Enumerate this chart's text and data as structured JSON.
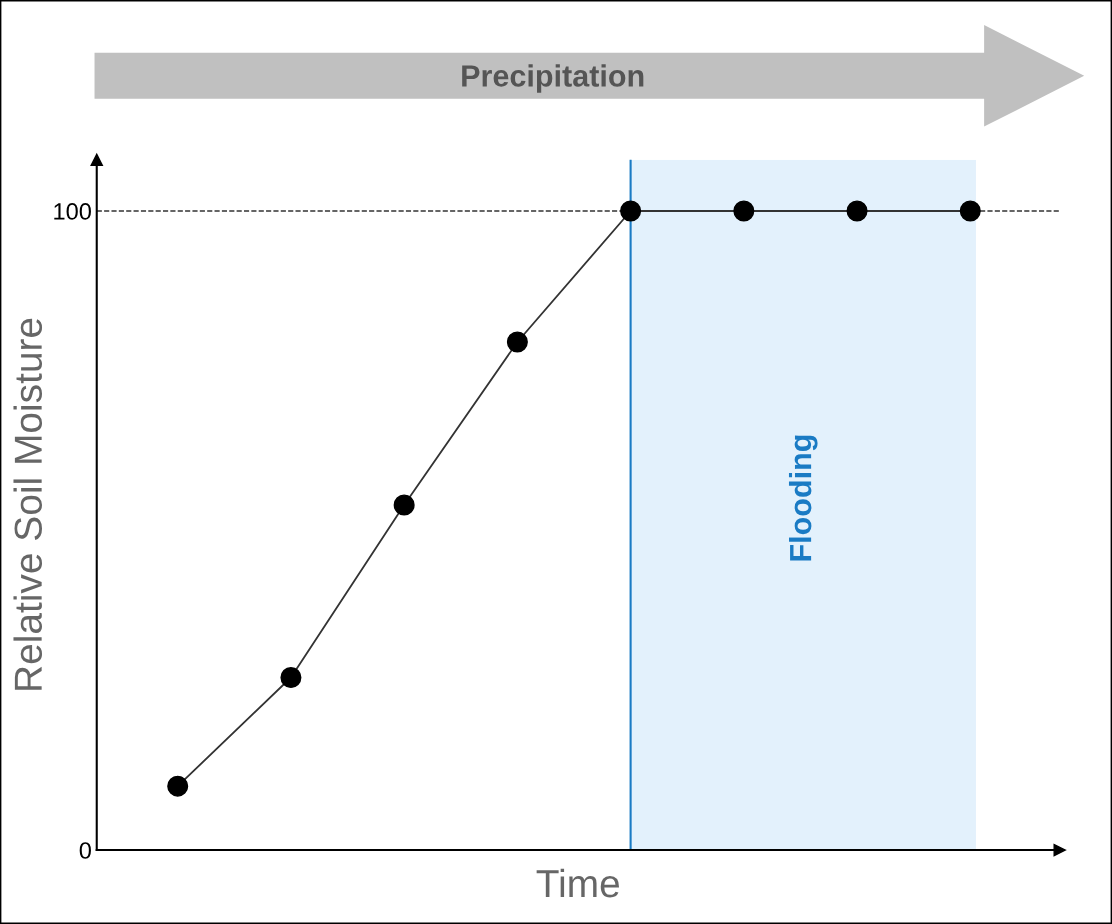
{
  "chart_data": {
    "type": "line",
    "xlabel": "Time",
    "ylabel": "Relative Soil Moisture",
    "categories": [
      null,
      null,
      null,
      null,
      null,
      null,
      null,
      null
    ],
    "series": [
      {
        "color": "#000000",
        "values": [
          10,
          27,
          54,
          79.5,
          100,
          100,
          100,
          100
        ]
      }
    ],
    "marker": "circle",
    "line_style": "solid",
    "ylim": [
      0,
      108
    ],
    "yticks": [
      0,
      100
    ],
    "grid": false,
    "legend": false,
    "ref_lines": [
      {
        "axis": "y",
        "value": 100,
        "color": "#333333",
        "line_style": "dashed"
      }
    ],
    "annotations": [
      "Precipitation",
      "Flooding"
    ]
  }
}
